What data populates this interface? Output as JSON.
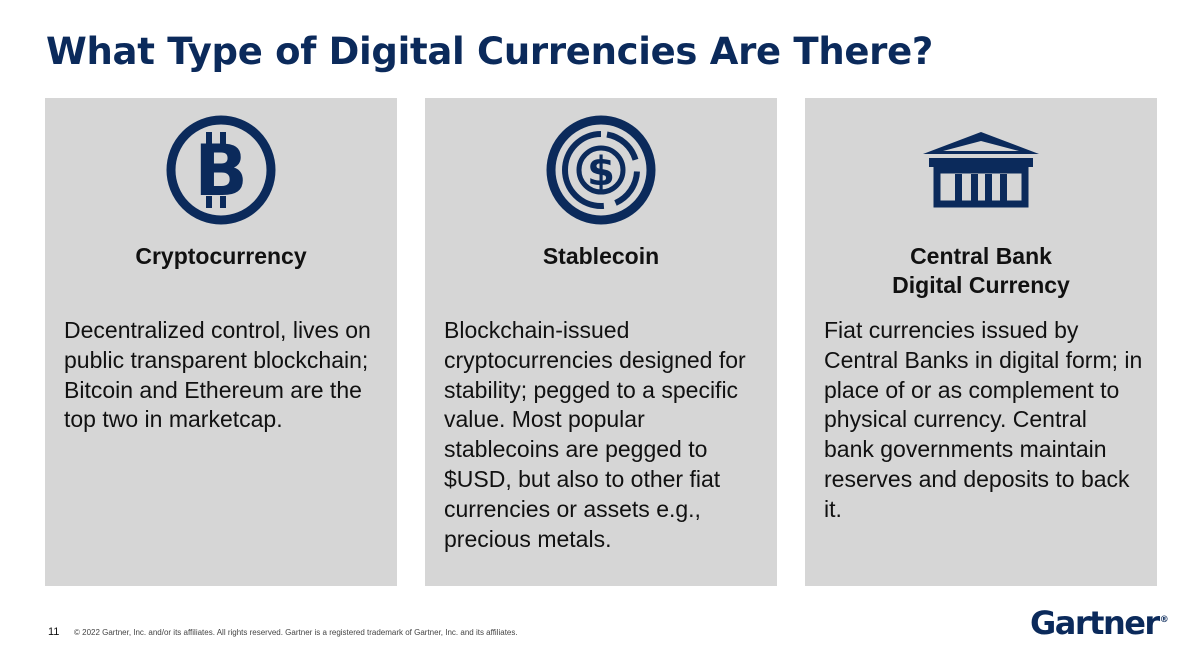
{
  "title": "What Type of Digital Currencies Are There?",
  "cards": [
    {
      "icon": "bitcoin-icon",
      "name": "Cryptocurrency",
      "description": "Decentralized control, lives on public transparent blockchain; Bitcoin and Ethereum are the top two in marketcap."
    },
    {
      "icon": "stablecoin-dollar-icon",
      "name": "Stablecoin",
      "description": "Blockchain-issued cryptocurrencies designed for stability; pegged to a specific value. Most popular stablecoins are pegged to $USD, but also to other fiat currencies or assets e.g., precious metals."
    },
    {
      "icon": "bank-building-icon",
      "name": "Central Bank\nDigital Currency",
      "description": "Fiat currencies issued by Central Banks in digital form; in place of or as complement to physical currency. Central bank governments maintain reserves and deposits to back it."
    }
  ],
  "footer": {
    "page_number": "11",
    "copyright": "© 2022 Gartner, Inc. and/or its affiliates. All rights reserved. Gartner is a registered trademark of Gartner, Inc. and its affiliates.",
    "logo_text": "Gartner",
    "logo_mark": "®"
  },
  "colors": {
    "navy": "#0b2a5b",
    "card_bg": "#d6d6d6"
  }
}
